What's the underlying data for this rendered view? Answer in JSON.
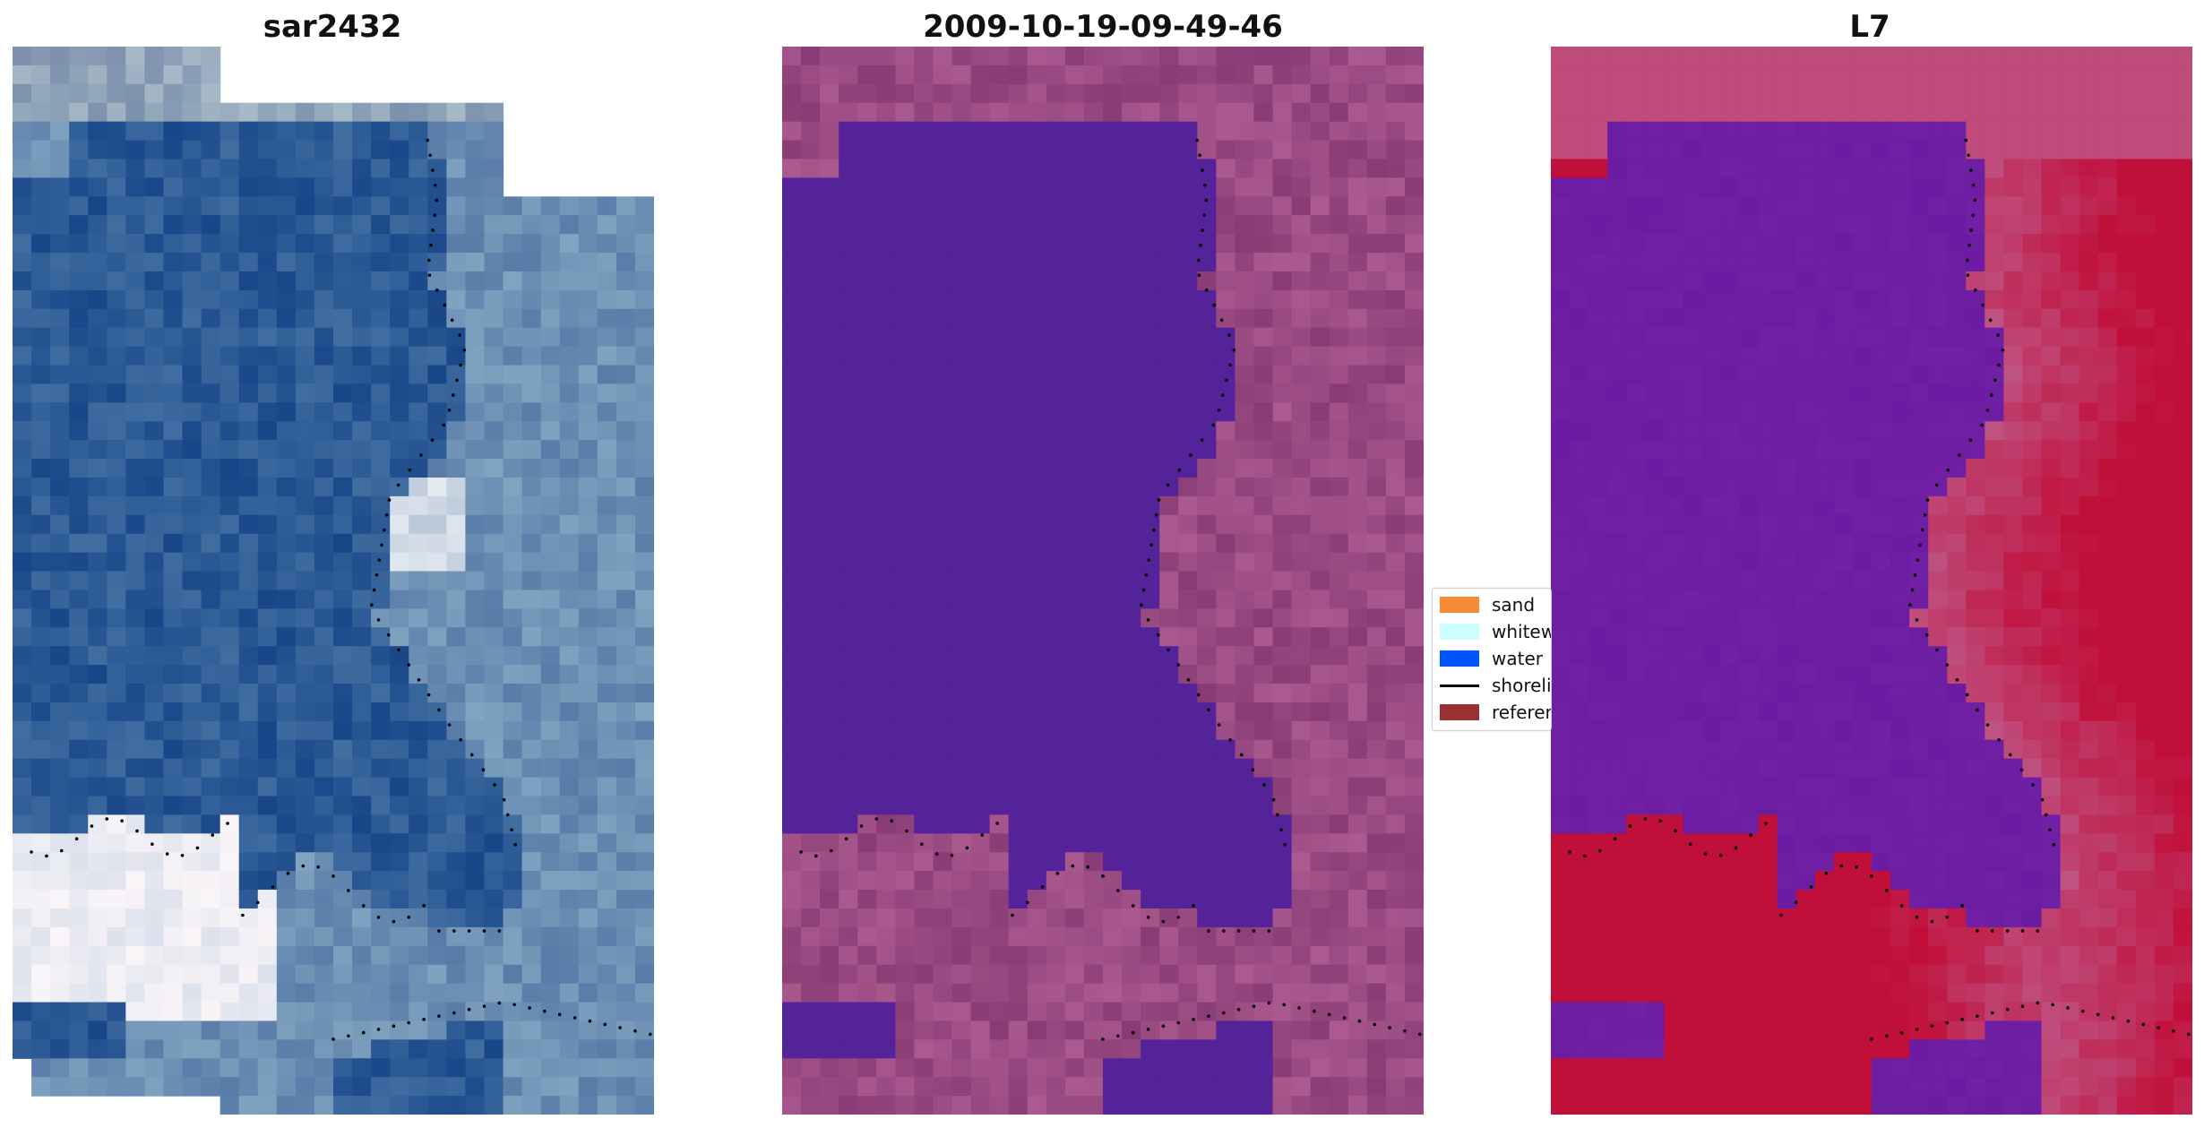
{
  "panels": [
    {
      "title": "sar2432",
      "kind": "rgb"
    },
    {
      "title": "2009-10-19-09-49-46",
      "kind": "classified"
    },
    {
      "title": "L7",
      "kind": "mndwi"
    }
  ],
  "legend": [
    {
      "label": "sand",
      "color": "#f58a36",
      "type": "patch"
    },
    {
      "label": "whitewater",
      "color": "#ccffff",
      "type": "patch"
    },
    {
      "label": "water",
      "color": "#0055ff",
      "type": "patch"
    },
    {
      "label": "shoreline",
      "color": "#000000",
      "type": "line"
    },
    {
      "label": "reference",
      "color": "#9b3030",
      "type": "patch"
    }
  ],
  "colors": {
    "water_class": "#542299",
    "land_class": "#b9669a",
    "rgb_water": "#2c5a95",
    "rgb_land": "#6c8fb4",
    "mndwi_low": "#6a1aa0",
    "mndwi_high": "#c0103a",
    "shoreline": "#000000"
  }
}
